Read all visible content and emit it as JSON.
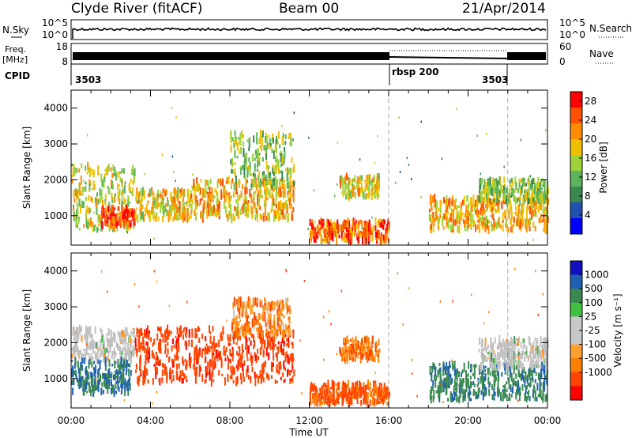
{
  "header": {
    "station": "Clyde River (fitACF)",
    "beam": "Beam 00",
    "date": "21/Apr/2014"
  },
  "noise_panel": {
    "left_label": "N.Sky",
    "right_label": "N.Search",
    "left_ticks": [
      "10^5",
      "10^0"
    ],
    "right_ticks": [
      "10^5",
      "10^0"
    ]
  },
  "freq_panel": {
    "left_label_1": "Freq.",
    "left_label_2": "[MHz]",
    "left_ticks": [
      "18",
      "8"
    ],
    "right_label": "Nave",
    "right_ticks": [
      "60",
      "0"
    ]
  },
  "cpid_panel": {
    "label": "CPID",
    "segments": [
      {
        "name": "3503",
        "start_h": 0,
        "end_h": 16
      },
      {
        "name": "rbsp 200",
        "start_h": 16,
        "end_h": 22
      },
      {
        "name": "3503",
        "start_h": 22,
        "end_h": 24
      }
    ]
  },
  "colors": {
    "power_scale": [
      "#0000ff",
      "#2050b0",
      "#3a8a50",
      "#5bb35b",
      "#9ed43a",
      "#f0c000",
      "#ff8c00",
      "#ff5000",
      "#ff0000"
    ],
    "velocity_scale": [
      "#ff0000",
      "#ff4500",
      "#ff8000",
      "#ffa030",
      "#c8c8c8",
      "#c8c8c8",
      "#40c040",
      "#3a8a50",
      "#2060b0",
      "#1010c0"
    ],
    "velocity_ground": "#c0c0c0"
  },
  "chart_data": [
    {
      "type": "heatmap",
      "name": "power",
      "xlabel": "Time UT",
      "ylabel": "Slant Range [km]",
      "x_ticks": [
        "00:00",
        "04:00",
        "08:00",
        "12:00",
        "16:00",
        "20:00",
        "00:00"
      ],
      "xlim_hours": [
        0,
        24
      ],
      "ylim_km": [
        180,
        4500
      ],
      "y_ticks": [
        1000,
        2000,
        3000,
        4000
      ],
      "colorbar": {
        "title": "Power [dB]",
        "ticks": [
          "28",
          "24",
          "20",
          "16",
          "12",
          "8",
          "4"
        ],
        "range": [
          0,
          30
        ]
      },
      "scatter_bands": [
        {
          "t0": 0.0,
          "t1": 3.2,
          "r0": 600,
          "r1": 2400,
          "level": 16
        },
        {
          "t0": 1.5,
          "t1": 3.2,
          "r0": 700,
          "r1": 1200,
          "level": 26
        },
        {
          "t0": 3.2,
          "t1": 6.0,
          "r0": 900,
          "r1": 1700,
          "level": 18
        },
        {
          "t0": 6.0,
          "t1": 11.2,
          "r0": 900,
          "r1": 2000,
          "level": 20
        },
        {
          "t0": 8.0,
          "t1": 11.2,
          "r0": 1800,
          "r1": 3300,
          "level": 14
        },
        {
          "t0": 12.0,
          "t1": 16.0,
          "r0": 300,
          "r1": 850,
          "level": 24
        },
        {
          "t0": 13.5,
          "t1": 15.5,
          "r0": 1500,
          "r1": 2100,
          "level": 18
        },
        {
          "t0": 18.0,
          "t1": 24.0,
          "r0": 600,
          "r1": 1500,
          "level": 20
        },
        {
          "t0": 20.5,
          "t1": 24.0,
          "r0": 1400,
          "r1": 2000,
          "level": 14
        }
      ]
    },
    {
      "type": "heatmap",
      "name": "velocity",
      "xlabel": "Time UT",
      "ylabel": "Slant Range [km]",
      "x_ticks": [
        "00:00",
        "04:00",
        "08:00",
        "12:00",
        "16:00",
        "20:00",
        "00:00"
      ],
      "xlim_hours": [
        0,
        24
      ],
      "ylim_km": [
        180,
        4500
      ],
      "y_ticks": [
        1000,
        2000,
        3000,
        4000
      ],
      "colorbar": {
        "title": "Velocity [m s⁻¹]",
        "ticks": [
          "1000",
          "500",
          "100",
          "25",
          "-25",
          "-100",
          "-500",
          "-1000"
        ]
      },
      "scatter_bands": [
        {
          "t0": 0.0,
          "t1": 3.2,
          "r0": 1500,
          "r1": 2400,
          "level": 0
        },
        {
          "t0": 0.0,
          "t1": 3.0,
          "r0": 600,
          "r1": 1500,
          "level": 300
        },
        {
          "t0": 3.2,
          "t1": 11.2,
          "r0": 900,
          "r1": 2400,
          "level": -400
        },
        {
          "t0": 8.0,
          "t1": 11.0,
          "r0": 2200,
          "r1": 3200,
          "level": -150
        },
        {
          "t0": 12.0,
          "t1": 16.0,
          "r0": 300,
          "r1": 850,
          "level": -300
        },
        {
          "t0": 13.5,
          "t1": 15.5,
          "r0": 1500,
          "r1": 2100,
          "level": -200
        },
        {
          "t0": 18.0,
          "t1": 24.0,
          "r0": 400,
          "r1": 1400,
          "level": 250
        },
        {
          "t0": 20.5,
          "t1": 24.0,
          "r0": 1300,
          "r1": 2100,
          "level": 0
        }
      ]
    }
  ]
}
